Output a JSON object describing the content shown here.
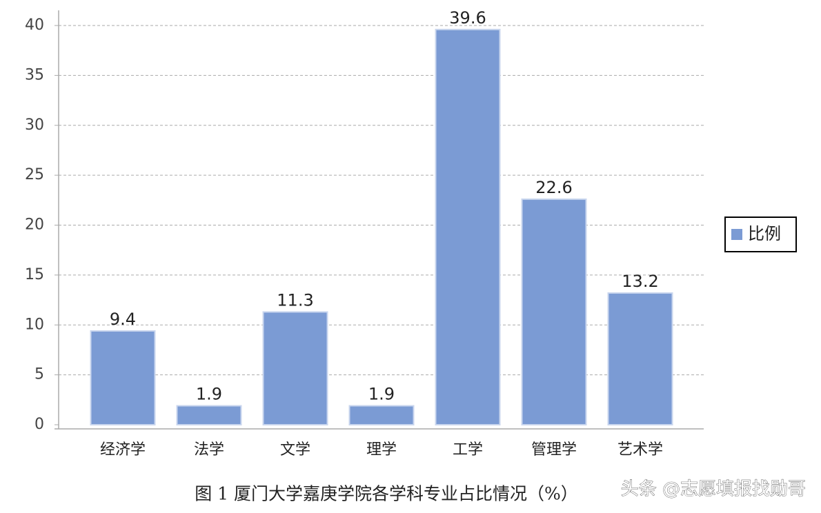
{
  "chart_data": {
    "type": "bar",
    "categories": [
      "经济学",
      "法学",
      "文学",
      "理学",
      "工学",
      "管理学",
      "艺术学"
    ],
    "series": [
      {
        "name": "比例",
        "color": "#7b9bd4",
        "values": [
          9.4,
          1.9,
          11.3,
          1.9,
          39.6,
          22.6,
          13.2
        ]
      }
    ],
    "ylim": [
      0,
      40
    ],
    "yticks": [
      0,
      5,
      10,
      15,
      20,
      25,
      30,
      35,
      40
    ],
    "grid": true,
    "legend": "right",
    "caption": "图 1  厦门大学嘉庚学院各学科专业占比情况（%）",
    "watermark": "头条 @志愿填报找勋哥"
  }
}
